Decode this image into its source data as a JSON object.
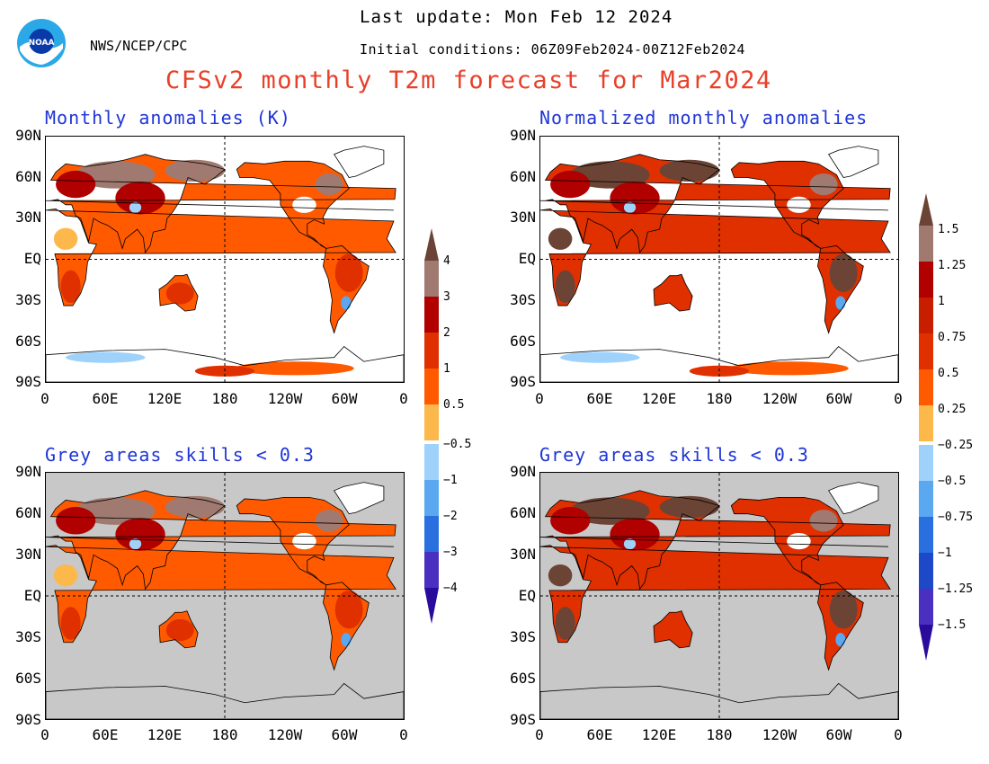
{
  "header": {
    "last_update": "Last update: Mon Feb 12 2024",
    "initial_conditions": "Initial conditions: 06Z09Feb2024-00Z12Feb2024",
    "organization": "NWS/NCEP/CPC",
    "logo_text": "NOAA",
    "title": "CFSv2 monthly T2m forecast for Mar2024"
  },
  "panels": {
    "top_left": {
      "title": "Monthly anomalies (K)"
    },
    "top_right": {
      "title": "Normalized monthly anomalies"
    },
    "bottom_left": {
      "title": "Grey areas skills < 0.3"
    },
    "bottom_right": {
      "title": "Grey areas skills < 0.3"
    }
  },
  "axes": {
    "lat_labels": [
      "90N",
      "60N",
      "30N",
      "EQ",
      "30S",
      "60S",
      "90S"
    ],
    "lon_labels": [
      "0",
      "60E",
      "120E",
      "180",
      "120W",
      "60W",
      "0"
    ]
  },
  "colorbar_left": {
    "labels": [
      "4",
      "3",
      "2",
      "1",
      "0.5",
      "−0.5",
      "−1",
      "−2",
      "−3",
      "−4"
    ]
  },
  "colorbar_right": {
    "labels": [
      "1.5",
      "1.25",
      "1",
      "0.75",
      "0.5",
      "0.25",
      "−0.25",
      "−0.5",
      "−0.75",
      "−1",
      "−1.25",
      "−1.5"
    ]
  },
  "colors": {
    "title_red": "#e8402a",
    "panel_title_blue": "#1f35d6",
    "skill_mask_grey": "#c8c8c8",
    "warm_scale": [
      "#fdb84b",
      "#ff5a00",
      "#e03000",
      "#b00000",
      "#a07a70",
      "#6b4435"
    ],
    "cold_scale": [
      "#9fd2fb",
      "#5aa8f0",
      "#2a6fe0",
      "#1d48c8",
      "#4a30c0",
      "#2a0c9c"
    ]
  }
}
